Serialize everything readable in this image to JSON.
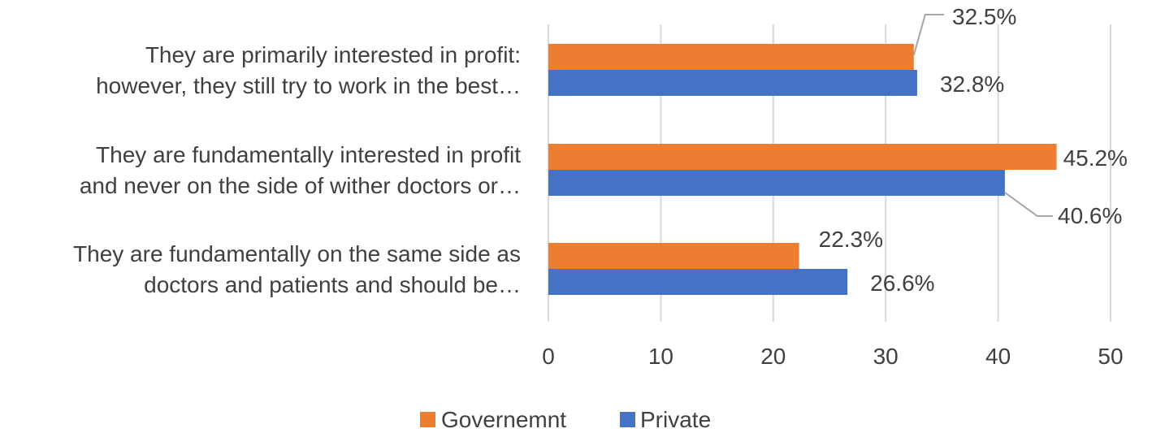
{
  "chart_data": {
    "type": "bar",
    "orientation": "horizontal",
    "categories": [
      [
        "They are primarily interested in profit:",
        "however, they still try to work in the best…"
      ],
      [
        "They are fundamentally interested in profit",
        "and never on the side of wither doctors or…"
      ],
      [
        "They are fundamentally on the same side as",
        "doctors and patients and should be…"
      ]
    ],
    "series": [
      {
        "name": "Governemnt",
        "color": "#ED7D31",
        "values": [
          32.5,
          45.2,
          22.3
        ],
        "labels": [
          "32.5%",
          "45.2%",
          "22.3%"
        ]
      },
      {
        "name": "Private",
        "color": "#4472C4",
        "values": [
          32.8,
          40.6,
          26.6
        ],
        "labels": [
          "32.8%",
          "40.6%",
          "26.6%"
        ]
      }
    ],
    "xlim": [
      0,
      50
    ],
    "xticks": [
      0,
      10,
      20,
      30,
      40,
      50
    ],
    "grid": "vertical",
    "legend": "bottom",
    "title": "",
    "xlabel": "",
    "ylabel": ""
  }
}
